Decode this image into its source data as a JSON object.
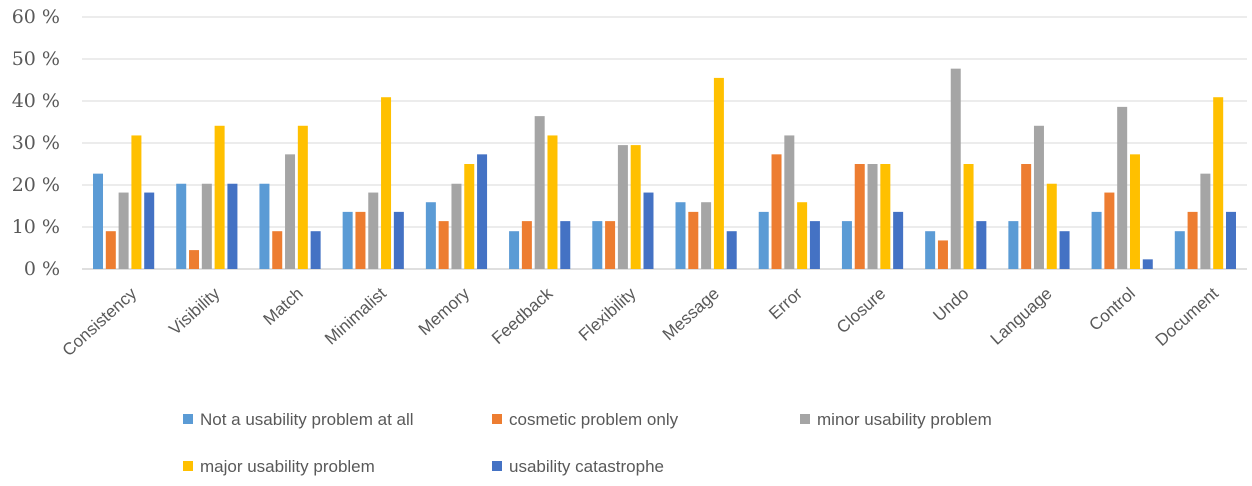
{
  "chart_data": {
    "type": "bar",
    "categories": [
      "Consistency",
      "Visibility",
      "Match",
      "Minimalist",
      "Memory",
      "Feedback",
      "Flexibility",
      "Message",
      "Error",
      "Closure",
      "Undo",
      "Language",
      "Control",
      "Document"
    ],
    "series": [
      {
        "name": "Not a usability problem at all",
        "color": "#5B9BD5",
        "values": [
          22.7,
          20.3,
          20.3,
          13.6,
          15.9,
          9.0,
          11.4,
          15.9,
          13.6,
          11.4,
          9.0,
          11.4,
          13.6,
          9.0
        ]
      },
      {
        "name": "cosmetic problem only",
        "color": "#ED7D31",
        "values": [
          9.0,
          4.5,
          9.0,
          13.6,
          11.4,
          11.4,
          11.4,
          13.6,
          27.3,
          25.0,
          6.8,
          25.0,
          18.2,
          13.6
        ]
      },
      {
        "name": "minor usability problem",
        "color": "#A5A5A5",
        "values": [
          18.2,
          20.3,
          27.3,
          18.2,
          20.3,
          36.4,
          29.5,
          15.9,
          31.8,
          25.0,
          47.7,
          34.1,
          38.6,
          22.7
        ]
      },
      {
        "name": "major usability problem",
        "color": "#FFC000",
        "values": [
          31.8,
          34.1,
          34.1,
          40.9,
          25.0,
          31.8,
          29.5,
          45.5,
          15.9,
          25.0,
          25.0,
          20.3,
          27.3,
          40.9
        ]
      },
      {
        "name": "usability catastrophe",
        "color": "#4472C4",
        "values": [
          18.2,
          20.3,
          9.0,
          13.6,
          27.3,
          11.4,
          18.2,
          9.0,
          11.4,
          13.6,
          11.4,
          9.0,
          2.3,
          13.6
        ]
      }
    ],
    "yticks": [
      "0 %",
      "10 %",
      "20 %",
      "30 %",
      "40 %",
      "50 %",
      "60 %"
    ],
    "ylim": [
      0,
      60
    ],
    "grid": true,
    "legend_position": "bottom"
  }
}
